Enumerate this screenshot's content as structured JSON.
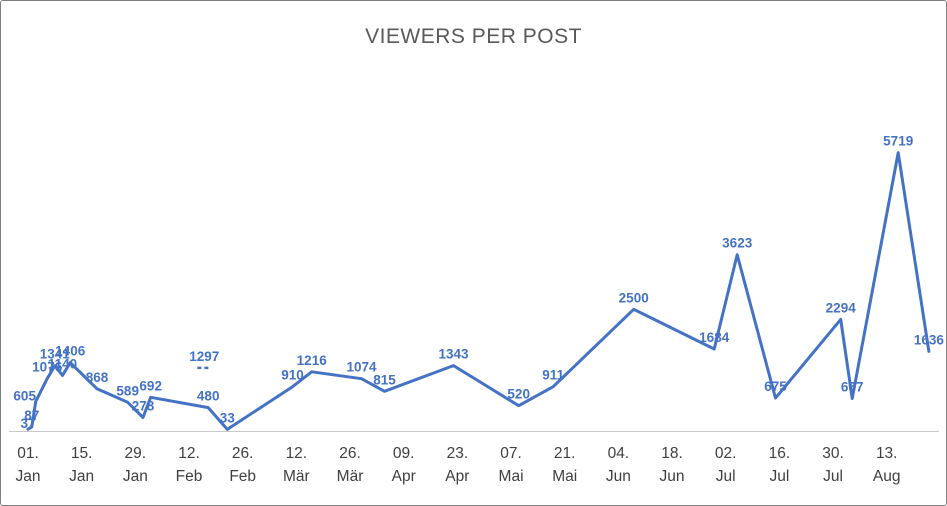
{
  "chart_data": {
    "type": "line",
    "title": "VIEWERS PER POST",
    "series_color": "#4472C4",
    "title_color": "#595959",
    "axis_color": "#C9C9C9",
    "tick_text_color": "#3F3F3F",
    "legend": "none",
    "grid": "off",
    "ylim": [
      0,
      6000
    ],
    "x_axis": {
      "start_date": "01. Jan",
      "tick_interval_days": 14,
      "tick_labels": [
        [
          "01.",
          "Jan"
        ],
        [
          "15.",
          "Jan"
        ],
        [
          "29.",
          "Jan"
        ],
        [
          "12.",
          "Feb"
        ],
        [
          "26.",
          "Feb"
        ],
        [
          "12.",
          "Mär"
        ],
        [
          "26.",
          "Mär"
        ],
        [
          "09.",
          "Apr"
        ],
        [
          "23.",
          "Apr"
        ],
        [
          "07.",
          "Mai"
        ],
        [
          "21.",
          "Mai"
        ],
        [
          "04.",
          "Jun"
        ],
        [
          "18.",
          "Jun"
        ],
        [
          "02.",
          "Jul"
        ],
        [
          "16.",
          "Jul"
        ],
        [
          "30.",
          "Jul"
        ],
        [
          "13.",
          "Aug"
        ]
      ]
    },
    "points": [
      {
        "day": 0,
        "value": 37,
        "label_dy": 6
      },
      {
        "day": 1,
        "value": 87
      },
      {
        "day": 2,
        "value": 605,
        "label_dx": -11,
        "label_dy": 6
      },
      {
        "day": 5,
        "value": 1076
      },
      {
        "day": 7,
        "value": 1341
      },
      {
        "day": 9,
        "value": 1140
      },
      {
        "day": 11,
        "value": 1406
      },
      {
        "day": 18,
        "value": 868
      },
      {
        "day": 26,
        "value": 589
      },
      {
        "day": 30,
        "value": 278
      },
      {
        "day": 32,
        "value": 692
      },
      {
        "day": 47,
        "value": 480
      },
      {
        "day": 52,
        "value": 33
      },
      {
        "day": 69,
        "value": 910
      },
      {
        "day": 74,
        "value": 1216
      },
      {
        "day": 87,
        "value": 1074
      },
      {
        "day": 93,
        "value": 815
      },
      {
        "day": 111,
        "value": 1343
      },
      {
        "day": 128,
        "value": 520
      },
      {
        "day": 137,
        "value": 911
      },
      {
        "day": 158,
        "value": 2500
      },
      {
        "day": 179,
        "value": 1684
      },
      {
        "day": 185,
        "value": 3623
      },
      {
        "day": 195,
        "value": 675
      },
      {
        "day": 212,
        "value": 2294
      },
      {
        "day": 215,
        "value": 667
      },
      {
        "day": 227,
        "value": 5719
      },
      {
        "day": 235,
        "value": 1636
      }
    ],
    "isolated_points": [
      {
        "day": 46,
        "value": 1297
      }
    ]
  }
}
